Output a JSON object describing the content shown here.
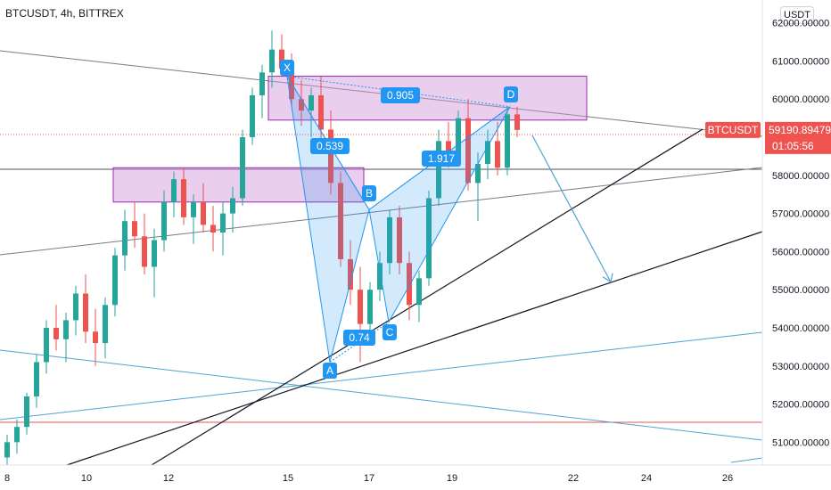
{
  "header": {
    "title": "BTCUSDT, 4h, BITTREX",
    "unit_button": "USDT"
  },
  "price_tag": {
    "symbol": "BTCUSDT",
    "price": "59190.89479",
    "countdown": "01:05:56",
    "color": "#ef5350"
  },
  "colors": {
    "up": "#26a69a",
    "down": "#ef5350",
    "pattern_fill": "#2196f3",
    "zone_fill": "#ce93d8",
    "zone_border": "#9c27b0",
    "label_bg": "#2196f3",
    "projection": "#4fa3d1"
  },
  "pattern": {
    "points": {
      "X": "X",
      "A": "A",
      "B": "B",
      "C": "C",
      "D": "D"
    },
    "ratios": {
      "XB": "0.539",
      "AC": "0.74",
      "BD": "1.917",
      "XD": "0.905"
    }
  },
  "chart_data": {
    "type": "candlestick",
    "title": "BTCUSDT, 4h, BITTREX",
    "xlabel": "",
    "ylabel": "",
    "ylim": [
      50400,
      62600
    ],
    "x_ticks": [
      "8",
      "10",
      "12",
      "15",
      "17",
      "19",
      "22",
      "24",
      "26"
    ],
    "y_ticks": [
      "51000.00000",
      "52000.00000",
      "53000.00000",
      "54000.00000",
      "55000.00000",
      "56000.00000",
      "57000.00000",
      "58000.00000",
      "59000.00000",
      "60000.00000",
      "61000.00000",
      "62000.00000"
    ],
    "last_price": 59190.89479,
    "harmonic_points": [
      {
        "label": "X",
        "price": 60600
      },
      {
        "label": "A",
        "price": 53100
      },
      {
        "label": "B",
        "price": 57100
      },
      {
        "label": "C",
        "price": 54150
      },
      {
        "label": "D",
        "price": 59800
      }
    ],
    "zones": [
      {
        "price_top": 60600,
        "price_bottom": 59450
      },
      {
        "price_top": 58200,
        "price_bottom": 57300
      }
    ],
    "projection_target": 55200,
    "candles_approx": [
      {
        "o": 50600,
        "h": 51200,
        "l": 50400,
        "c": 51000
      },
      {
        "o": 51000,
        "h": 51600,
        "l": 50700,
        "c": 51400
      },
      {
        "o": 51400,
        "h": 52300,
        "l": 51200,
        "c": 52200
      },
      {
        "o": 52200,
        "h": 53300,
        "l": 51900,
        "c": 53100
      },
      {
        "o": 53100,
        "h": 54200,
        "l": 52800,
        "c": 54000
      },
      {
        "o": 54000,
        "h": 54600,
        "l": 53400,
        "c": 53700
      },
      {
        "o": 53700,
        "h": 54400,
        "l": 53100,
        "c": 54200
      },
      {
        "o": 54200,
        "h": 55100,
        "l": 53800,
        "c": 54900
      },
      {
        "o": 54900,
        "h": 55400,
        "l": 53600,
        "c": 53900
      },
      {
        "o": 53900,
        "h": 54500,
        "l": 53000,
        "c": 53600
      },
      {
        "o": 53600,
        "h": 54800,
        "l": 53200,
        "c": 54600
      },
      {
        "o": 54600,
        "h": 56100,
        "l": 54300,
        "c": 55900
      },
      {
        "o": 55900,
        "h": 57100,
        "l": 55500,
        "c": 56800
      },
      {
        "o": 56800,
        "h": 57300,
        "l": 56100,
        "c": 56400
      },
      {
        "o": 56400,
        "h": 57000,
        "l": 55400,
        "c": 55600
      },
      {
        "o": 55600,
        "h": 56600,
        "l": 54800,
        "c": 56300
      },
      {
        "o": 56300,
        "h": 57600,
        "l": 56000,
        "c": 57300
      },
      {
        "o": 57300,
        "h": 58100,
        "l": 56900,
        "c": 57900
      },
      {
        "o": 57900,
        "h": 58200,
        "l": 56700,
        "c": 56900
      },
      {
        "o": 56900,
        "h": 57500,
        "l": 56200,
        "c": 57300
      },
      {
        "o": 57300,
        "h": 57800,
        "l": 56500,
        "c": 56700
      },
      {
        "o": 56700,
        "h": 57200,
        "l": 56000,
        "c": 56500
      },
      {
        "o": 56500,
        "h": 57300,
        "l": 55900,
        "c": 57000
      },
      {
        "o": 57000,
        "h": 57700,
        "l": 56500,
        "c": 57400
      },
      {
        "o": 57400,
        "h": 59200,
        "l": 57200,
        "c": 59000
      },
      {
        "o": 59000,
        "h": 60300,
        "l": 58800,
        "c": 60100
      },
      {
        "o": 60100,
        "h": 60900,
        "l": 59500,
        "c": 60700
      },
      {
        "o": 60700,
        "h": 61800,
        "l": 60300,
        "c": 61300
      },
      {
        "o": 61300,
        "h": 61700,
        "l": 60600,
        "c": 60800
      },
      {
        "o": 60800,
        "h": 61200,
        "l": 59800,
        "c": 60000
      },
      {
        "o": 60000,
        "h": 60500,
        "l": 59300,
        "c": 59700
      },
      {
        "o": 59700,
        "h": 60300,
        "l": 59000,
        "c": 60100
      },
      {
        "o": 60100,
        "h": 60600,
        "l": 58900,
        "c": 59200
      },
      {
        "o": 59200,
        "h": 59700,
        "l": 57500,
        "c": 57800
      },
      {
        "o": 57800,
        "h": 58100,
        "l": 55600,
        "c": 55800
      },
      {
        "o": 55800,
        "h": 56300,
        "l": 54600,
        "c": 55000
      },
      {
        "o": 55000,
        "h": 55600,
        "l": 53100,
        "c": 54100
      },
      {
        "o": 54100,
        "h": 55200,
        "l": 53700,
        "c": 55000
      },
      {
        "o": 55000,
        "h": 56000,
        "l": 54700,
        "c": 55700
      },
      {
        "o": 55700,
        "h": 57100,
        "l": 55400,
        "c": 56900
      },
      {
        "o": 56900,
        "h": 57200,
        "l": 55400,
        "c": 55700
      },
      {
        "o": 55700,
        "h": 56000,
        "l": 54200,
        "c": 54600
      },
      {
        "o": 54600,
        "h": 55500,
        "l": 54150,
        "c": 55300
      },
      {
        "o": 55300,
        "h": 57600,
        "l": 55100,
        "c": 57400
      },
      {
        "o": 57400,
        "h": 59200,
        "l": 57200,
        "c": 58900
      },
      {
        "o": 58900,
        "h": 59400,
        "l": 58200,
        "c": 58500
      },
      {
        "o": 58500,
        "h": 59700,
        "l": 58300,
        "c": 59500
      },
      {
        "o": 59500,
        "h": 60000,
        "l": 57600,
        "c": 57800
      },
      {
        "o": 57800,
        "h": 58600,
        "l": 56800,
        "c": 58300
      },
      {
        "o": 58300,
        "h": 59200,
        "l": 57900,
        "c": 58900
      },
      {
        "o": 58900,
        "h": 59400,
        "l": 58000,
        "c": 58200
      },
      {
        "o": 58200,
        "h": 59800,
        "l": 58000,
        "c": 59600
      },
      {
        "o": 59600,
        "h": 59800,
        "l": 59000,
        "c": 59190.89479
      }
    ]
  }
}
